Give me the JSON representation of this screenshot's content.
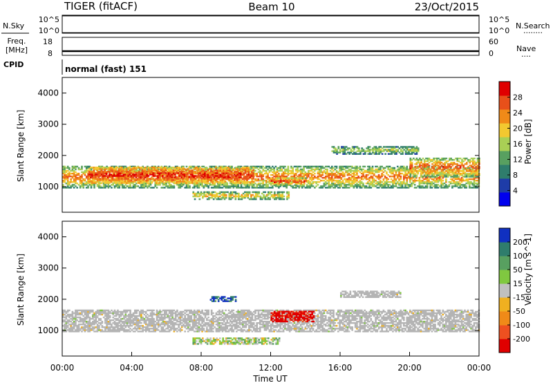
{
  "header": {
    "title_left": "TIGER (fitACF)",
    "title_center": "Beam 10",
    "title_right": "23/Oct/2015"
  },
  "nsky_panel": {
    "label": "N.Sky",
    "ticks_left": [
      "10^5",
      "10^0"
    ],
    "ticks_right": [
      "10^5",
      "10^0"
    ],
    "right_label": "N.Search",
    "right_dots": "........"
  },
  "freq_panel": {
    "label_top": "Freq.",
    "label_bottom": "[MHz]",
    "ticks_left": [
      "18",
      "8"
    ],
    "ticks_right": [
      "60",
      "0"
    ],
    "right_label": "Nave",
    "right_dots": "....",
    "freq_value": 8.0
  },
  "cpid": {
    "label": "CPID",
    "text": "normal (fast) 151"
  },
  "colors": {
    "power": [
      "#0000ee",
      "#1e3ca8",
      "#2f7d6c",
      "#58a060",
      "#a9cf55",
      "#f2c830",
      "#f08a18",
      "#e8501a",
      "#e00000"
    ],
    "velocity": [
      "#e00000",
      "#ee5020",
      "#f08a18",
      "#f0b020",
      "#c0c0c0",
      "#80c840",
      "#58a060",
      "#2f7d6c",
      "#1030c0"
    ],
    "ground_scatter": "#b4b4b4"
  },
  "chart_data": [
    {
      "type": "heatmap",
      "name": "power",
      "ylabel": "Slant Range [km]",
      "yticks": [
        "1000",
        "2000",
        "3000",
        "4000"
      ],
      "ylim": [
        180,
        4500
      ],
      "colorbar": {
        "label": "Power [dB]",
        "ticks": [
          "4",
          "8",
          "12",
          "16",
          "20",
          "24",
          "28"
        ],
        "range": [
          0,
          30
        ]
      },
      "bands": [
        {
          "t0": 0.0,
          "t1": 24.0,
          "r_center": 1300,
          "r_halfwidth": 350,
          "v_peak": 24,
          "v_edge": 10
        },
        {
          "t0": 1.5,
          "t1": 11.0,
          "r_center": 1350,
          "r_halfwidth": 250,
          "v_peak": 28,
          "v_edge": 18
        },
        {
          "t0": 7.5,
          "t1": 13.0,
          "r_center": 700,
          "r_halfwidth": 120,
          "v_peak": 20,
          "v_edge": 10
        },
        {
          "t0": 12.0,
          "t1": 14.0,
          "r_center": 1150,
          "r_halfwidth": 120,
          "v_peak": 28,
          "v_edge": 14
        },
        {
          "t0": 15.5,
          "t1": 20.5,
          "r_center": 2150,
          "r_halfwidth": 120,
          "v_peak": 16,
          "v_edge": 8
        },
        {
          "t0": 20.0,
          "t1": 24.0,
          "r_center": 1600,
          "r_halfwidth": 300,
          "v_peak": 26,
          "v_edge": 12
        }
      ]
    },
    {
      "type": "heatmap",
      "name": "velocity",
      "ylabel": "Slant Range [km]",
      "yticks": [
        "1000",
        "2000",
        "3000",
        "4000"
      ],
      "ylim": [
        180,
        4500
      ],
      "xlabel": "Time UT",
      "xticks": [
        "00:00",
        "04:00",
        "08:00",
        "12:00",
        "16:00",
        "20:00",
        "00:00"
      ],
      "xlim": [
        0,
        24
      ],
      "colorbar": {
        "label": "Velocity [m s^-1]",
        "ticks": [
          "-200",
          "-100",
          "-50",
          "-15",
          "15",
          "50",
          "100",
          "200"
        ]
      },
      "bands": [
        {
          "t0": 0.0,
          "t1": 24.0,
          "r_center": 1300,
          "r_halfwidth": 350,
          "class": "ground"
        },
        {
          "t0": 8.5,
          "t1": 10.0,
          "r_center": 2000,
          "r_halfwidth": 80,
          "class": 8
        },
        {
          "t0": 12.0,
          "t1": 14.5,
          "r_center": 1450,
          "r_halfwidth": 180,
          "class": 0
        },
        {
          "t0": 7.5,
          "t1": 12.5,
          "r_center": 650,
          "r_halfwidth": 100,
          "class": 5
        },
        {
          "t0": 16.0,
          "t1": 19.5,
          "r_center": 2150,
          "r_halfwidth": 100,
          "class": "ground"
        }
      ]
    }
  ]
}
